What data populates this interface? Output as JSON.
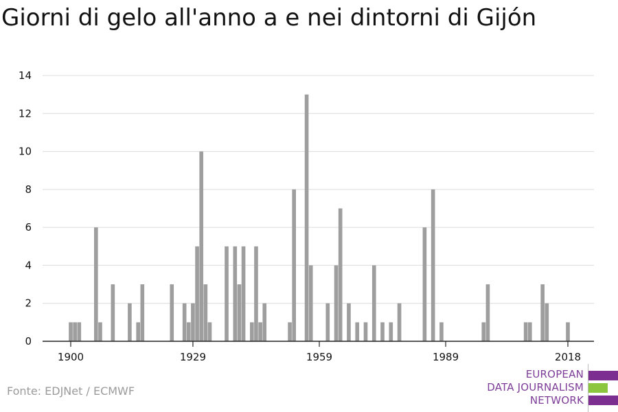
{
  "title": "Giorni di gelo all'anno a e nei dintorni di Gijón",
  "source": "Fonte: EDJNet / ECMWF",
  "logo": {
    "lines": [
      "EUROPEAN",
      "DATA JOURNALISM",
      "NETWORK"
    ],
    "colors": {
      "purple": "#7d2e91",
      "green": "#8cc63f"
    }
  },
  "colors": {
    "bar": "#9e9e9e",
    "grid": "#dcdcdc",
    "axis": "#222222",
    "text": "#111111"
  },
  "chart_data": {
    "type": "bar",
    "title": "Giorni di gelo all'anno a e nei dintorni di Gijón",
    "xlabel": "",
    "ylabel": "",
    "ylim": [
      0,
      14
    ],
    "yticks": [
      0,
      2,
      4,
      6,
      8,
      10,
      12,
      14
    ],
    "xlim": [
      1900,
      2018
    ],
    "xticks": [
      1900,
      1929,
      1959,
      1989,
      2018
    ],
    "grid": true,
    "x": [
      1900,
      1901,
      1902,
      1903,
      1904,
      1905,
      1906,
      1907,
      1908,
      1909,
      1910,
      1911,
      1912,
      1913,
      1914,
      1915,
      1916,
      1917,
      1918,
      1919,
      1920,
      1921,
      1922,
      1923,
      1924,
      1925,
      1926,
      1927,
      1928,
      1929,
      1930,
      1931,
      1932,
      1933,
      1934,
      1935,
      1936,
      1937,
      1938,
      1939,
      1940,
      1941,
      1942,
      1943,
      1944,
      1945,
      1946,
      1947,
      1948,
      1949,
      1950,
      1951,
      1952,
      1953,
      1954,
      1955,
      1956,
      1957,
      1958,
      1959,
      1960,
      1961,
      1962,
      1963,
      1964,
      1965,
      1966,
      1967,
      1968,
      1969,
      1970,
      1971,
      1972,
      1973,
      1974,
      1975,
      1976,
      1977,
      1978,
      1979,
      1980,
      1981,
      1982,
      1983,
      1984,
      1985,
      1986,
      1987,
      1988,
      1989,
      1990,
      1991,
      1992,
      1993,
      1994,
      1995,
      1996,
      1997,
      1998,
      1999,
      2000,
      2001,
      2002,
      2003,
      2004,
      2005,
      2006,
      2007,
      2008,
      2009,
      2010,
      2011,
      2012,
      2013,
      2014,
      2015,
      2016,
      2017,
      2018
    ],
    "values": [
      1,
      1,
      1,
      0,
      0,
      0,
      6,
      1,
      0,
      0,
      3,
      0,
      0,
      0,
      2,
      0,
      1,
      3,
      0,
      0,
      0,
      0,
      0,
      0,
      3,
      0,
      0,
      2,
      1,
      2,
      5,
      10,
      3,
      1,
      0,
      0,
      0,
      5,
      0,
      5,
      3,
      5,
      0,
      1,
      5,
      1,
      2,
      0,
      0,
      0,
      0,
      0,
      1,
      8,
      0,
      0,
      13,
      4,
      0,
      0,
      0,
      2,
      0,
      4,
      7,
      0,
      2,
      0,
      1,
      0,
      1,
      0,
      4,
      0,
      1,
      0,
      1,
      0,
      2,
      0,
      0,
      0,
      0,
      0,
      6,
      0,
      8,
      0,
      1,
      0,
      0,
      0,
      0,
      0,
      0,
      0,
      0,
      0,
      1,
      3,
      0,
      0,
      0,
      0,
      0,
      0,
      0,
      0,
      1,
      1,
      0,
      0,
      3,
      2,
      0,
      0,
      0,
      0,
      1
    ]
  }
}
